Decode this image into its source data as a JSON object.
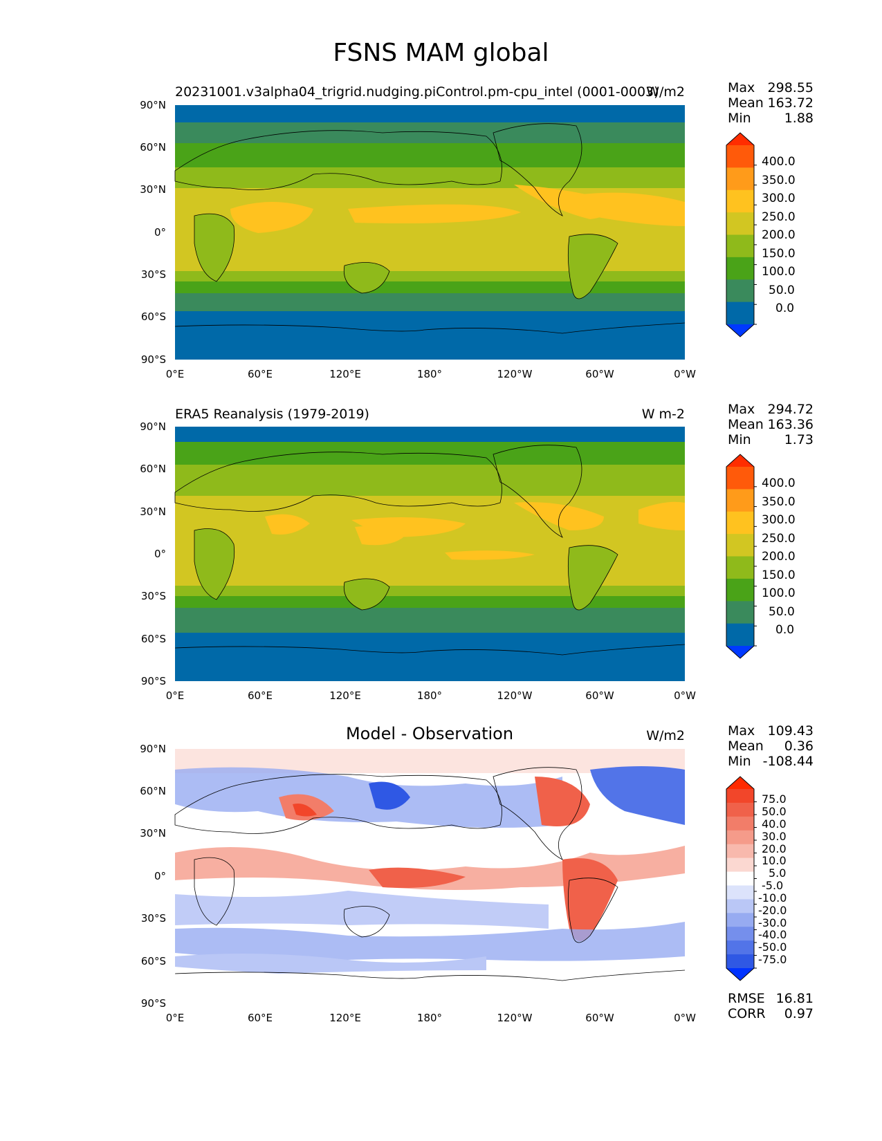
{
  "title": "FSNS MAM global",
  "panels": [
    {
      "id": "model",
      "title_left": "20231001.v3alpha04_trigrid.nudging.piControl.pm-cpu_intel (0001-0003)",
      "units": "W/m2",
      "stats": {
        "max_label": "Max",
        "max": "298.55",
        "mean_label": "Mean",
        "mean": "163.72",
        "min_label": "Min",
        "min": "1.88"
      },
      "colorbar": {
        "levels": [
          "400.0",
          "350.0",
          "300.0",
          "250.0",
          "200.0",
          "150.0",
          "100.0",
          "50.0",
          "0.0"
        ],
        "colors": [
          "#ff2d00",
          "#ff5a0a",
          "#ff9b1a",
          "#ffc21f",
          "#d2c622",
          "#8fba1b",
          "#4aa318",
          "#3a8a5c",
          "#0069a8",
          "#0039ff"
        ]
      }
    },
    {
      "id": "obs",
      "title_left": "ERA5 Reanalysis (1979-2019)",
      "units": "W m-2",
      "stats": {
        "max_label": "Max",
        "max": "294.72",
        "mean_label": "Mean",
        "mean": "163.36",
        "min_label": "Min",
        "min": "1.73"
      },
      "colorbar": {
        "levels": [
          "400.0",
          "350.0",
          "300.0",
          "250.0",
          "200.0",
          "150.0",
          "100.0",
          "50.0",
          "0.0"
        ],
        "colors": [
          "#ff2d00",
          "#ff5a0a",
          "#ff9b1a",
          "#ffc21f",
          "#d2c622",
          "#8fba1b",
          "#4aa318",
          "#3a8a5c",
          "#0069a8",
          "#0039ff"
        ]
      }
    },
    {
      "id": "diff",
      "title_center": "Model - Observation",
      "units": "W/m2",
      "stats": {
        "max_label": "Max",
        "max": "109.43",
        "mean_label": "Mean",
        "mean": "0.36",
        "min_label": "Min",
        "min": "-108.44"
      },
      "extra_stats": {
        "rmse_label": "RMSE",
        "rmse": "16.81",
        "corr_label": "CORR",
        "corr": "0.97"
      },
      "colorbar": {
        "levels": [
          "75.0",
          "50.0",
          "40.0",
          "30.0",
          "20.0",
          "10.0",
          "5.0",
          "-5.0",
          "-10.0",
          "-20.0",
          "-30.0",
          "-40.0",
          "-50.0",
          "-75.0"
        ],
        "colors": [
          "#ff2a00",
          "#f2462a",
          "#f0614a",
          "#f27d69",
          "#f59b8a",
          "#f8b9ad",
          "#fbd8d1",
          "#ffffff",
          "#dce3fb",
          "#bac7f6",
          "#97abf1",
          "#758fec",
          "#5274e8",
          "#2f58e4",
          "#0033ff"
        ]
      }
    }
  ],
  "axes": {
    "y_ticks": [
      "90°N",
      "60°N",
      "30°N",
      "0°",
      "30°S",
      "60°S",
      "90°S"
    ],
    "x_ticks": [
      "0°E",
      "60°E",
      "120°E",
      "180°",
      "120°W",
      "60°W",
      "0°W"
    ]
  }
}
